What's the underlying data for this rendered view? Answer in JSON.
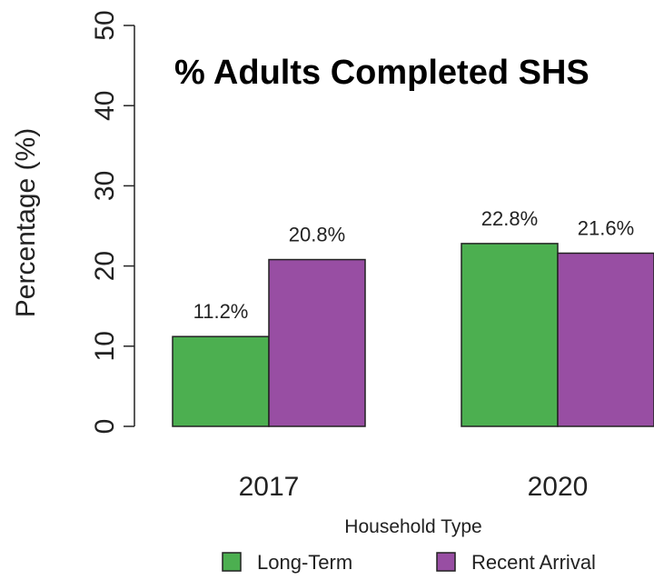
{
  "chart_data": {
    "type": "bar",
    "title": "% Adults Completed SHS",
    "xlabel": "Household Type",
    "ylabel": "Percentage (%)",
    "ylim": [
      0,
      50
    ],
    "yticks": [
      "0",
      "10",
      "20",
      "30",
      "40",
      "50"
    ],
    "categories": [
      "2017",
      "2020"
    ],
    "series": [
      {
        "name": "Long-Term",
        "color": "#4caf50",
        "values": [
          11.2,
          22.8
        ],
        "labels": [
          "11.2%",
          "22.8%"
        ]
      },
      {
        "name": "Recent Arrival",
        "color": "#984ea3",
        "values": [
          20.8,
          21.6
        ],
        "labels": [
          "20.8%",
          "21.6%"
        ]
      }
    ],
    "grid": false,
    "legend_position": "bottom"
  }
}
